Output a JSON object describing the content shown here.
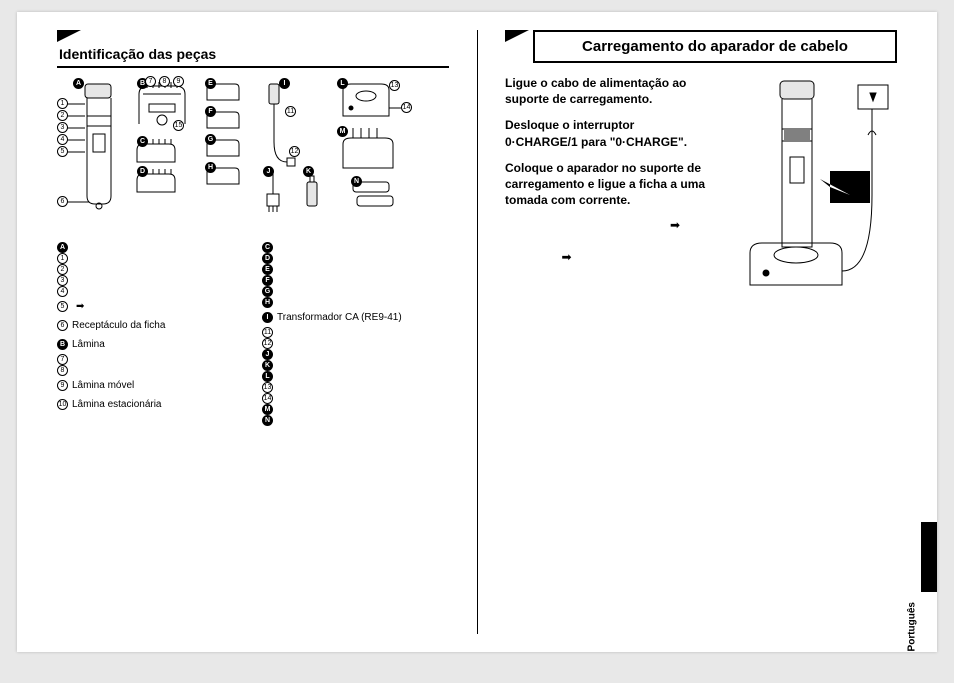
{
  "left": {
    "title": "Identificação das peças",
    "diagram_letters": [
      "A",
      "B",
      "C",
      "D",
      "E",
      "F",
      "G",
      "H",
      "I",
      "J",
      "K",
      "L",
      "M",
      "N"
    ],
    "diagram_nums_left": [
      "1",
      "2",
      "3",
      "4",
      "5",
      "6"
    ],
    "diagram_nums_mid": [
      "7",
      "8",
      "9",
      "10",
      "11",
      "12",
      "13",
      "14",
      "15"
    ],
    "callouts_col1": [
      {
        "letter": "A",
        "text": ""
      },
      {
        "num": "1",
        "text": ""
      },
      {
        "num": "2",
        "text": ""
      },
      {
        "num": "3",
        "text": ""
      },
      {
        "num": "4",
        "text": ""
      },
      {
        "num": "5",
        "text": "",
        "plug": true
      },
      {
        "num": "6",
        "text": "Receptáculo da ficha"
      },
      {
        "letter": "B",
        "text": "Lâmina"
      },
      {
        "num": "7",
        "text": ""
      },
      {
        "num": "8",
        "text": ""
      },
      {
        "num": "9",
        "text": "Lâmina móvel"
      },
      {
        "num": "10",
        "text": "Lâmina estacionária"
      }
    ],
    "callouts_col2": [
      {
        "letter": "C",
        "text": ""
      },
      {
        "letter": "D",
        "text": ""
      },
      {
        "letter": "E",
        "text": ""
      },
      {
        "letter": "F",
        "text": ""
      },
      {
        "letter": "G",
        "text": ""
      },
      {
        "letter": "H",
        "text": ""
      },
      {
        "letter": "I",
        "text": "Transformador CA (RE9-41)"
      },
      {
        "num": "11",
        "text": ""
      },
      {
        "num": "12",
        "text": ""
      },
      {
        "letter": "J",
        "text": ""
      },
      {
        "letter": "K",
        "text": ""
      },
      {
        "letter": "L",
        "text": ""
      },
      {
        "num": "13",
        "text": ""
      },
      {
        "num": "14",
        "text": ""
      },
      {
        "letter": "M",
        "text": ""
      },
      {
        "letter": "N",
        "text": ""
      }
    ]
  },
  "right": {
    "banner": "Carregamento do aparador de cabelo",
    "p1": "Ligue o cabo de alimentação ao suporte de carregamento.",
    "p2": "Desloque o interruptor 0·CHARGE/1 para \"0·CHARGE\".",
    "p3": "Coloque o aparador no suporte de carregamento e ligue a ficha a uma tomada com corrente.",
    "lang": "Português"
  },
  "colors": {
    "page_bg": "#ffffff",
    "outer_bg": "#e8e8e8",
    "ink": "#000000",
    "fill_light": "#e6e6e6"
  }
}
